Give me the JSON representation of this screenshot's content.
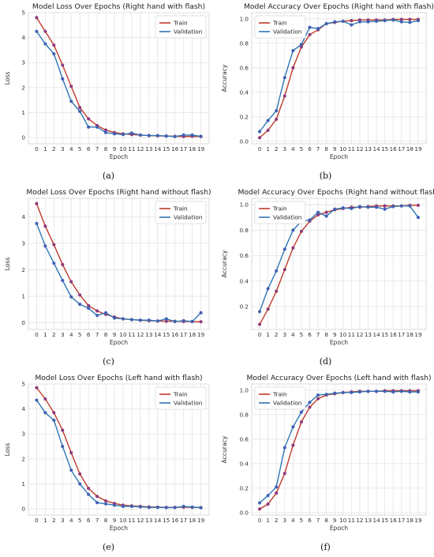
{
  "figure": {
    "panels": [
      {
        "caption": "(a)"
      },
      {
        "caption": "(b)"
      },
      {
        "caption": "(c)"
      },
      {
        "caption": "(d)"
      },
      {
        "caption": "(e)"
      },
      {
        "caption": "(f)"
      }
    ]
  },
  "colors": {
    "train": "#c0392b",
    "validation": "#2e75b6",
    "train_marker": "#7d3c98",
    "validation_marker": "#4a5ab0",
    "grid": "#e3e3e3",
    "background": "#ffffff"
  },
  "chart_data": [
    {
      "type": "line",
      "title": "Model Loss Over Epochs (Right hand with flash)",
      "xlabel": "Epoch",
      "ylabel": "Loss",
      "x": [
        0,
        1,
        2,
        3,
        4,
        5,
        6,
        7,
        8,
        9,
        10,
        11,
        12,
        13,
        14,
        15,
        16,
        17,
        18,
        19
      ],
      "ylim": [
        -0.25,
        5.0
      ],
      "yticks": [
        0,
        1,
        2,
        3,
        4,
        5
      ],
      "grid": true,
      "legend_position": "top-right",
      "series": [
        {
          "name": "Train",
          "values": [
            4.8,
            4.25,
            3.7,
            2.9,
            2.05,
            1.2,
            0.75,
            0.48,
            0.3,
            0.2,
            0.15,
            0.12,
            0.1,
            0.08,
            0.07,
            0.06,
            0.05,
            0.04,
            0.05,
            0.04
          ]
        },
        {
          "name": "Validation",
          "values": [
            4.25,
            3.75,
            3.35,
            2.35,
            1.45,
            1.05,
            0.42,
            0.42,
            0.2,
            0.15,
            0.12,
            0.18,
            0.1,
            0.08,
            0.08,
            0.06,
            0.04,
            0.1,
            0.1,
            0.05
          ]
        }
      ]
    },
    {
      "type": "line",
      "title": "Model Accuracy Over Epochs (Right hand with flash)",
      "xlabel": "Epoch",
      "ylabel": "Accuracy",
      "x": [
        0,
        1,
        2,
        3,
        4,
        5,
        6,
        7,
        8,
        9,
        10,
        11,
        12,
        13,
        14,
        15,
        16,
        17,
        18,
        19
      ],
      "ylim": [
        -0.02,
        1.05
      ],
      "yticks": [
        0.0,
        0.2,
        0.4,
        0.6,
        0.8,
        1.0
      ],
      "grid": true,
      "legend_position": "top-left",
      "series": [
        {
          "name": "Train",
          "values": [
            0.03,
            0.09,
            0.18,
            0.37,
            0.6,
            0.77,
            0.87,
            0.91,
            0.96,
            0.97,
            0.98,
            0.985,
            0.99,
            0.99,
            0.99,
            0.99,
            0.995,
            0.995,
            0.995,
            0.995
          ]
        },
        {
          "name": "Validation",
          "values": [
            0.08,
            0.17,
            0.25,
            0.52,
            0.74,
            0.79,
            0.93,
            0.92,
            0.96,
            0.975,
            0.98,
            0.95,
            0.975,
            0.975,
            0.98,
            0.985,
            0.99,
            0.975,
            0.97,
            0.985
          ]
        }
      ]
    },
    {
      "type": "line",
      "title": "Model Loss Over Epochs (Right hand without flash)",
      "xlabel": "Epoch",
      "ylabel": "Loss",
      "x": [
        0,
        1,
        2,
        3,
        4,
        5,
        6,
        7,
        8,
        9,
        10,
        11,
        12,
        13,
        14,
        15,
        16,
        17,
        18,
        19
      ],
      "ylim": [
        -0.25,
        4.7
      ],
      "yticks": [
        0,
        1,
        2,
        3,
        4
      ],
      "grid": true,
      "legend_position": "top-right",
      "series": [
        {
          "name": "Train",
          "values": [
            4.5,
            3.65,
            2.95,
            2.2,
            1.55,
            1.05,
            0.65,
            0.45,
            0.32,
            0.22,
            0.15,
            0.12,
            0.1,
            0.08,
            0.07,
            0.06,
            0.06,
            0.05,
            0.05,
            0.04
          ]
        },
        {
          "name": "Validation",
          "values": [
            3.75,
            2.9,
            2.25,
            1.6,
            0.98,
            0.7,
            0.55,
            0.28,
            0.38,
            0.18,
            0.15,
            0.12,
            0.1,
            0.1,
            0.07,
            0.15,
            0.05,
            0.08,
            0.05,
            0.38
          ]
        }
      ]
    },
    {
      "type": "line",
      "title": "Model Accuracy Over Epochs (Right hand without flash)",
      "xlabel": "Epoch",
      "ylabel": "Accuracy",
      "x": [
        0,
        1,
        2,
        3,
        4,
        5,
        6,
        7,
        8,
        9,
        10,
        11,
        12,
        13,
        14,
        15,
        16,
        17,
        18,
        19
      ],
      "ylim": [
        0.02,
        1.05
      ],
      "yticks": [
        0.2,
        0.4,
        0.6,
        0.8,
        1.0
      ],
      "grid": true,
      "legend_position": "top-left",
      "series": [
        {
          "name": "Train",
          "values": [
            0.06,
            0.18,
            0.32,
            0.49,
            0.66,
            0.79,
            0.87,
            0.92,
            0.94,
            0.96,
            0.97,
            0.98,
            0.98,
            0.985,
            0.99,
            0.99,
            0.99,
            0.99,
            0.995,
            0.995
          ]
        },
        {
          "name": "Validation",
          "values": [
            0.16,
            0.34,
            0.48,
            0.65,
            0.8,
            0.87,
            0.88,
            0.94,
            0.91,
            0.965,
            0.975,
            0.97,
            0.985,
            0.98,
            0.98,
            0.965,
            0.985,
            0.99,
            0.99,
            0.9
          ]
        }
      ]
    },
    {
      "type": "line",
      "title": "Model Loss Over Epochs (Left hand with flash)",
      "xlabel": "Epoch",
      "ylabel": "Loss",
      "x": [
        0,
        1,
        2,
        3,
        4,
        5,
        6,
        7,
        8,
        9,
        10,
        11,
        12,
        13,
        14,
        15,
        16,
        17,
        18,
        19
      ],
      "ylim": [
        -0.25,
        5.0
      ],
      "yticks": [
        0,
        1,
        2,
        3,
        4,
        5
      ],
      "grid": true,
      "legend_position": "top-right",
      "series": [
        {
          "name": "Train",
          "values": [
            4.85,
            4.4,
            3.85,
            3.15,
            2.25,
            1.4,
            0.82,
            0.5,
            0.32,
            0.22,
            0.15,
            0.12,
            0.1,
            0.08,
            0.07,
            0.06,
            0.06,
            0.07,
            0.06,
            0.05
          ]
        },
        {
          "name": "Validation",
          "values": [
            4.35,
            3.85,
            3.55,
            2.5,
            1.55,
            1.0,
            0.58,
            0.25,
            0.2,
            0.15,
            0.1,
            0.1,
            0.08,
            0.06,
            0.06,
            0.05,
            0.05,
            0.1,
            0.07,
            0.05
          ]
        }
      ]
    },
    {
      "type": "line",
      "title": "Model Accuracy Over Epochs (Left hand with flash)",
      "xlabel": "Epoch",
      "ylabel": "Accuracy",
      "x": [
        0,
        1,
        2,
        3,
        4,
        5,
        6,
        7,
        8,
        9,
        10,
        11,
        12,
        13,
        14,
        15,
        16,
        17,
        18,
        19
      ],
      "ylim": [
        -0.02,
        1.05
      ],
      "yticks": [
        0.0,
        0.2,
        0.4,
        0.6,
        0.8,
        1.0
      ],
      "grid": true,
      "legend_position": "top-left",
      "series": [
        {
          "name": "Train",
          "values": [
            0.03,
            0.07,
            0.16,
            0.32,
            0.55,
            0.74,
            0.86,
            0.93,
            0.96,
            0.97,
            0.98,
            0.985,
            0.99,
            0.99,
            0.99,
            0.995,
            0.995,
            0.995,
            0.995,
            0.995
          ]
        },
        {
          "name": "Validation",
          "values": [
            0.08,
            0.14,
            0.21,
            0.53,
            0.7,
            0.82,
            0.9,
            0.96,
            0.965,
            0.975,
            0.98,
            0.98,
            0.985,
            0.99,
            0.99,
            0.99,
            0.985,
            0.99,
            0.985,
            0.985
          ]
        }
      ]
    }
  ]
}
